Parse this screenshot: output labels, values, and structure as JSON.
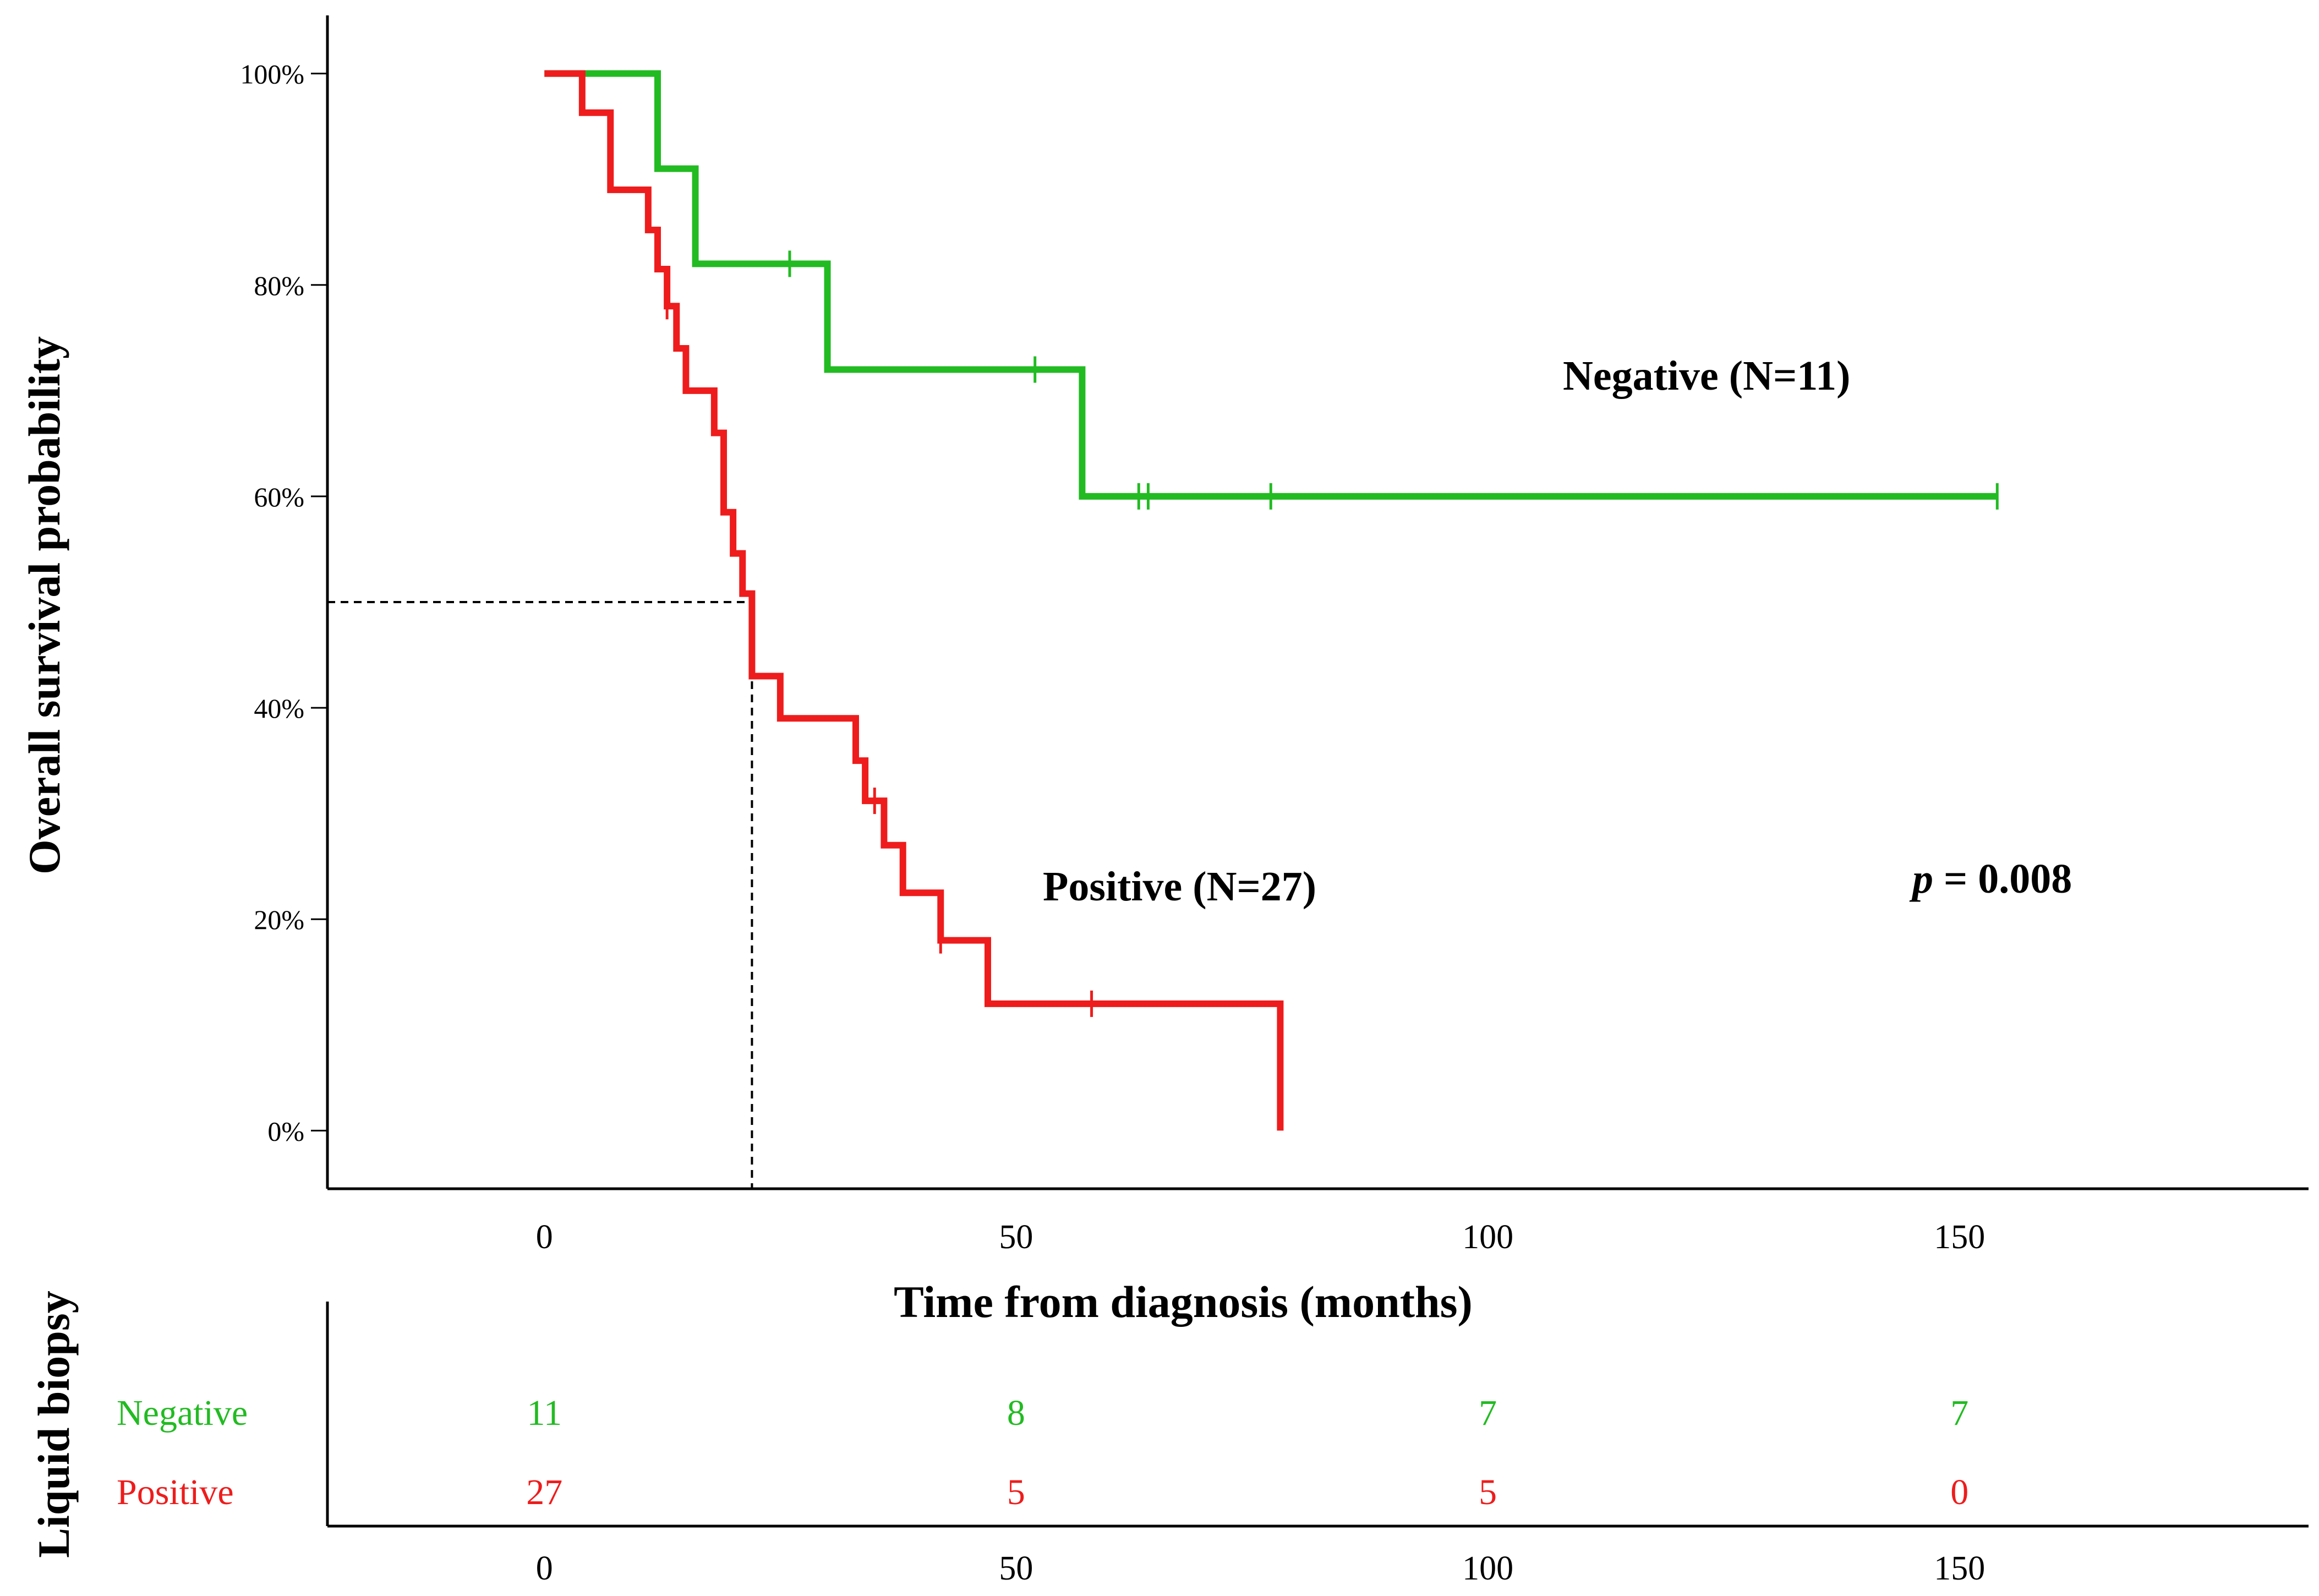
{
  "chart_data": {
    "type": "line",
    "subtype": "kaplan-meier survival curve",
    "ylabel": "Overall survival probability",
    "xlabel": "Time from diagnosis (months)",
    "xlim": [
      -23,
      187
    ],
    "ylim": [
      -5.5,
      105.5
    ],
    "x_ticks": [
      0,
      50,
      100,
      150
    ],
    "x_tick_labels": [
      "0",
      "50",
      "100",
      "150"
    ],
    "y_ticks": [
      0,
      20,
      40,
      60,
      80,
      100
    ],
    "y_tick_labels": [
      "0%",
      "20%",
      "40%",
      "60%",
      "80%",
      "100%"
    ],
    "series": [
      {
        "name": "Negative",
        "label": "Negative (N=11)",
        "color": "#22bb22",
        "steps": [
          [
            0,
            100
          ],
          [
            12,
            91
          ],
          [
            16,
            82
          ],
          [
            30,
            72
          ],
          [
            57,
            60
          ],
          [
            154,
            60
          ]
        ],
        "censored": [
          [
            26,
            82
          ],
          [
            52,
            72
          ],
          [
            63,
            60
          ],
          [
            64,
            60
          ],
          [
            77,
            60
          ],
          [
            154,
            60
          ]
        ]
      },
      {
        "name": "Positive",
        "label": "Positive (N=27)",
        "color": "#ee1c1c",
        "steps": [
          [
            0,
            100
          ],
          [
            4,
            96.3
          ],
          [
            7,
            89
          ],
          [
            11,
            85.2
          ],
          [
            12,
            81.5
          ],
          [
            13,
            78
          ],
          [
            14,
            74
          ],
          [
            15,
            70
          ],
          [
            18,
            66
          ],
          [
            19,
            58.5
          ],
          [
            20,
            54.6
          ],
          [
            21,
            50.8
          ],
          [
            22,
            43
          ],
          [
            25,
            39
          ],
          [
            33,
            35
          ],
          [
            34,
            31.2
          ],
          [
            36,
            27
          ],
          [
            38,
            22.5
          ],
          [
            42,
            18
          ],
          [
            47,
            12
          ],
          [
            78,
            12
          ],
          [
            78,
            0
          ]
        ],
        "censored": [
          [
            13,
            78
          ],
          [
            35,
            31.2
          ],
          [
            42,
            18
          ],
          [
            58,
            12
          ]
        ]
      }
    ],
    "median_survival": {
      "series": "Positive",
      "time": 22,
      "probability": 50
    },
    "annotations": {
      "p_symbol": "p",
      "p_rest": " = 0.008"
    }
  },
  "risk_table": {
    "title": "Liquid biopsy",
    "times": [
      "0",
      "50",
      "100",
      "150"
    ],
    "rows": [
      {
        "label": "Negative",
        "color": "#22bb22",
        "counts": [
          "11",
          "8",
          "7",
          "7"
        ]
      },
      {
        "label": "Positive",
        "color": "#ee1c1c",
        "counts": [
          "27",
          "5",
          "5",
          "0"
        ]
      }
    ]
  }
}
